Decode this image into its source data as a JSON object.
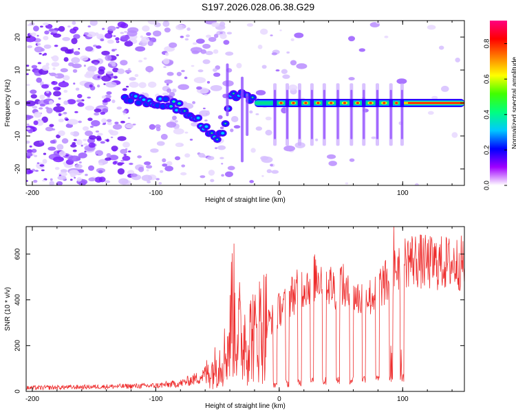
{
  "title": "S197.2026.028.06.38.G29",
  "chart_data": [
    {
      "type": "heatmap",
      "title": "",
      "xlabel": "Height of straight line (km)",
      "ylabel": "Frequency (Hz)",
      "xlim": [
        -205,
        150
      ],
      "ylim": [
        -25,
        25
      ],
      "x_ticks": [
        -200,
        -100,
        0,
        100
      ],
      "x_tick_labels": [
        "-200",
        "-100",
        "0",
        "100"
      ],
      "y_ticks": [
        -20,
        -10,
        0,
        10,
        20
      ],
      "y_tick_labels": [
        "-20",
        "-10",
        "0",
        "10",
        "20"
      ],
      "colorbar": {
        "label": "Normalized spectral amplitude",
        "range": [
          0,
          0.93
        ],
        "ticks": [
          0,
          0.2,
          0.4,
          0.6,
          0.8
        ],
        "tick_labels": [
          "0.0",
          "0.2",
          "0.4",
          "0.6",
          "0.8"
        ],
        "colors": [
          "#ffffff",
          "#a000ff",
          "#0000ff",
          "#00c8ff",
          "#00ff80",
          "#40ff00",
          "#ffff00",
          "#ff8000",
          "#ff0000",
          "#ff0080"
        ]
      },
      "ridge": [
        {
          "x": -125,
          "f": 1.5
        },
        {
          "x": -110,
          "f": 1.0
        },
        {
          "x": -100,
          "f": 0.5
        },
        {
          "x": -90,
          "f": 0.0
        },
        {
          "x": -80,
          "f": -1.5
        },
        {
          "x": -70,
          "f": -4.0
        },
        {
          "x": -60,
          "f": -7.0
        },
        {
          "x": -52,
          "f": -10.5
        },
        {
          "x": -45,
          "f": -9.0
        },
        {
          "x": -40,
          "f": 2.0
        },
        {
          "x": -30,
          "f": 3.5
        },
        {
          "x": -20,
          "f": 1.0
        },
        {
          "x": -10,
          "f": 0.0
        },
        {
          "x": 0,
          "f": 0.5
        },
        {
          "x": 20,
          "f": 0.0
        },
        {
          "x": 50,
          "f": 0.0
        },
        {
          "x": 80,
          "f": 0.0
        },
        {
          "x": 100,
          "f": 0.0
        },
        {
          "x": 150,
          "f": 0.0
        }
      ]
    },
    {
      "type": "line",
      "title": "",
      "xlabel": "Height of straight line (km)",
      "ylabel": "SNR (10 * v/v)",
      "xlim": [
        -205,
        150
      ],
      "ylim": [
        0,
        720
      ],
      "x_ticks": [
        -200,
        -100,
        0,
        100
      ],
      "x_tick_labels": [
        "-200",
        "-100",
        "0",
        "100"
      ],
      "y_ticks": [
        0,
        200,
        400,
        600
      ],
      "y_tick_labels": [
        "0",
        "200",
        "400",
        "600"
      ],
      "series": [
        {
          "name": "SNR",
          "color": "#ee2c2c",
          "x": [
            -205,
            -150,
            -100,
            -80,
            -65,
            -55,
            -45,
            -40,
            -38,
            -35,
            -33,
            -30,
            -28,
            -25,
            -22,
            -20,
            -15,
            -10,
            -5,
            -2,
            0,
            5,
            10,
            15,
            20,
            25,
            30,
            35,
            40,
            45,
            50,
            55,
            60,
            65,
            70,
            75,
            80,
            85,
            90,
            95,
            100,
            105,
            120,
            150
          ],
          "values": [
            15,
            20,
            25,
            35,
            60,
            90,
            150,
            220,
            420,
            250,
            300,
            180,
            260,
            200,
            280,
            230,
            290,
            300,
            320,
            330,
            360,
            380,
            420,
            440,
            460,
            480,
            500,
            510,
            470,
            450,
            480,
            420,
            430,
            400,
            420,
            410,
            460,
            470,
            480,
            550,
            560,
            580,
            560,
            560
          ]
        }
      ],
      "dropouts": [
        {
          "x0": -5,
          "x1": -2,
          "level": 30
        },
        {
          "x0": 5,
          "x1": 8,
          "level": 35
        },
        {
          "x0": 15,
          "x1": 18,
          "level": 40
        },
        {
          "x0": 25,
          "x1": 28,
          "level": 45
        },
        {
          "x0": 35,
          "x1": 38,
          "level": 45
        },
        {
          "x0": 46,
          "x1": 49,
          "level": 50
        },
        {
          "x0": 57,
          "x1": 60,
          "level": 50
        },
        {
          "x0": 67,
          "x1": 70,
          "level": 55
        },
        {
          "x0": 78,
          "x1": 81,
          "level": 55
        },
        {
          "x0": 89,
          "x1": 92,
          "level": 55
        },
        {
          "x0": 98,
          "x1": 101,
          "level": 60
        }
      ]
    }
  ]
}
